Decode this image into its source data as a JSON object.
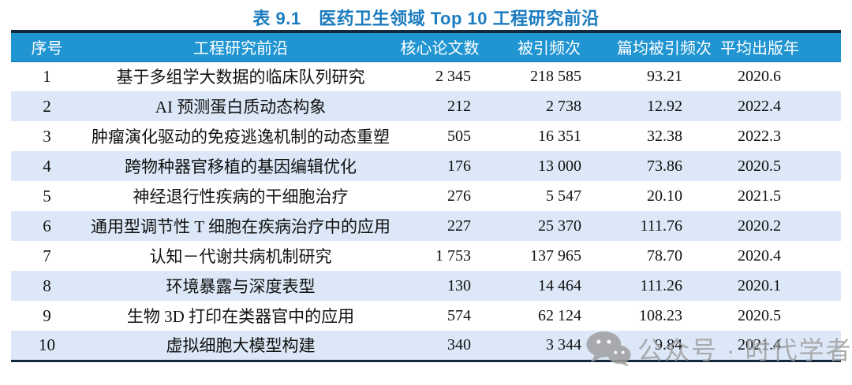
{
  "title": "表 9.1　医药卫生领域 Top 10 工程研究前沿",
  "table": {
    "columns": [
      "序号",
      "工程研究前沿",
      "核心论文数",
      "被引频次",
      "篇均被引频次",
      "平均出版年"
    ],
    "rows": [
      {
        "rank": "1",
        "front": "基于多组学大数据的临床队列研究",
        "papers": "2 345",
        "citations": "218 585",
        "citations_per_paper": "93.21",
        "mean_pub_year": "2020.6"
      },
      {
        "rank": "2",
        "front": "AI 预测蛋白质动态构象",
        "papers": "212",
        "citations": "2 738",
        "citations_per_paper": "12.92",
        "mean_pub_year": "2022.4"
      },
      {
        "rank": "3",
        "front": "肿瘤演化驱动的免疫逃逸机制的动态重塑",
        "papers": "505",
        "citations": "16 351",
        "citations_per_paper": "32.38",
        "mean_pub_year": "2022.3"
      },
      {
        "rank": "4",
        "front": "跨物种器官移植的基因编辑优化",
        "papers": "176",
        "citations": "13 000",
        "citations_per_paper": "73.86",
        "mean_pub_year": "2020.5"
      },
      {
        "rank": "5",
        "front": "神经退行性疾病的干细胞治疗",
        "papers": "276",
        "citations": "5 547",
        "citations_per_paper": "20.10",
        "mean_pub_year": "2021.5"
      },
      {
        "rank": "6",
        "front": "通用型调节性 T 细胞在疾病治疗中的应用",
        "papers": "227",
        "citations": "25 370",
        "citations_per_paper": "111.76",
        "mean_pub_year": "2020.2"
      },
      {
        "rank": "7",
        "front": "认知－代谢共病机制研究",
        "papers": "1 753",
        "citations": "137 965",
        "citations_per_paper": "78.70",
        "mean_pub_year": "2020.4"
      },
      {
        "rank": "8",
        "front": "环境暴露与深度表型",
        "papers": "130",
        "citations": "14 464",
        "citations_per_paper": "111.26",
        "mean_pub_year": "2020.1"
      },
      {
        "rank": "9",
        "front": "生物 3D 打印在类器官中的应用",
        "papers": "574",
        "citations": "62 124",
        "citations_per_paper": "108.23",
        "mean_pub_year": "2020.5"
      },
      {
        "rank": "10",
        "front": "虚拟细胞大模型构建",
        "papers": "340",
        "citations": "3 344",
        "citations_per_paper": "9.84",
        "mean_pub_year": "2021.4"
      }
    ]
  },
  "watermark": {
    "icon": "wechat-icon",
    "text": "公众号 · 时代学者"
  },
  "colors": {
    "title_blue": "#1b7cc0",
    "header_bg": "#2095d2",
    "header_text": "#ffffff",
    "alt_row_bg": "#dce8f7",
    "table_border": "#14293e",
    "watermark_gray": "#9f9f9f"
  }
}
